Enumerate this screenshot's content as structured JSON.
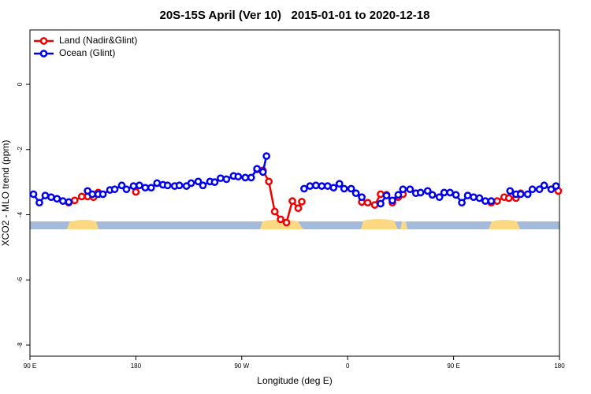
{
  "chart_data": {
    "type": "line",
    "title": "20S-15S April (Ver 10)   2015-01-01 to 2020-12-18",
    "x_label": "Longitude (deg E)",
    "y_label": "XCO2 - MLO trend (ppm)",
    "xlim": [
      90,
      540
    ],
    "ylim": [
      -8.34,
      1.67
    ],
    "xticks": [
      {
        "value": 90,
        "label": "90 E"
      },
      180,
      {
        "value": 270,
        "label": "90 W"
      },
      {
        "value": 360,
        "label": "0"
      },
      {
        "value": 450,
        "label": "90 E"
      },
      {
        "value": 540,
        "label": "180"
      }
    ],
    "yticks": [
      0,
      -2,
      -4,
      -6,
      -8
    ],
    "legend": "top-left",
    "series": [
      {
        "name": "Land (Nadir&Glint)",
        "color": "#ee0000",
        "x": [
          123,
          128,
          134,
          139,
          144,
          148,
          164,
          180,
          231,
          283,
          288,
          293,
          298,
          303,
          308,
          313,
          318,
          321,
          346,
          372,
          377,
          383,
          388,
          393,
          398,
          403,
          407,
          444,
          482,
          487,
          493,
          497,
          503,
          507,
          523,
          539
        ],
        "values": [
          -3.63,
          -3.56,
          -3.44,
          -3.44,
          -3.46,
          -3.32,
          null,
          -3.3,
          null,
          -2.61,
          -2.64,
          -2.98,
          -3.9,
          -4.14,
          -4.24,
          -3.58,
          -3.8,
          -3.6,
          null,
          -3.61,
          -3.63,
          -3.7,
          -3.37,
          -3.39,
          -3.63,
          -3.46,
          -3.37,
          null,
          -3.63,
          -3.58,
          -3.46,
          -3.49,
          -3.49,
          -3.34,
          null,
          -3.27
        ]
      },
      {
        "name": "Ocean (Glint)",
        "color": "#0000ee",
        "x": [
          93,
          98,
          103,
          108,
          113,
          118,
          123,
          131,
          139,
          143,
          148,
          152,
          158,
          162,
          168,
          172,
          178,
          183,
          188,
          193,
          198,
          203,
          207,
          213,
          217,
          223,
          227,
          233,
          237,
          243,
          247,
          252,
          257,
          263,
          267,
          273,
          278,
          283,
          288,
          291,
          307,
          323,
          328,
          333,
          338,
          343,
          348,
          353,
          357,
          363,
          367,
          372,
          380,
          388,
          393,
          398,
          403,
          407,
          413,
          418,
          422,
          428,
          432,
          438,
          442,
          447,
          452,
          457,
          462,
          467,
          472,
          477,
          482,
          490,
          498,
          503,
          507,
          513,
          517,
          523,
          527,
          533,
          537
        ],
        "values": [
          -3.37,
          -3.63,
          -3.41,
          -3.46,
          -3.51,
          -3.58,
          -3.61,
          null,
          -3.27,
          -3.37,
          -3.37,
          -3.37,
          -3.24,
          -3.22,
          -3.1,
          -3.22,
          -3.12,
          -3.1,
          -3.17,
          -3.17,
          -3.03,
          -3.08,
          -3.1,
          -3.12,
          -3.1,
          -3.12,
          -3.03,
          -2.98,
          -3.1,
          -2.98,
          -3.0,
          -2.88,
          -2.91,
          -2.81,
          -2.83,
          -2.86,
          -2.86,
          -2.59,
          -2.69,
          -2.2,
          null,
          -3.2,
          -3.12,
          -3.1,
          -3.12,
          -3.12,
          -3.17,
          -3.05,
          -3.2,
          -3.2,
          -3.34,
          -3.46,
          null,
          -3.66,
          -3.41,
          -3.56,
          -3.39,
          -3.22,
          -3.22,
          -3.34,
          -3.32,
          -3.27,
          -3.39,
          -3.46,
          -3.32,
          -3.32,
          -3.39,
          -3.63,
          -3.41,
          -3.46,
          -3.49,
          -3.58,
          -3.58,
          null,
          -3.27,
          -3.37,
          -3.37,
          -3.37,
          -3.22,
          -3.22,
          -3.1,
          -3.22,
          -3.12
        ]
      }
    ]
  }
}
